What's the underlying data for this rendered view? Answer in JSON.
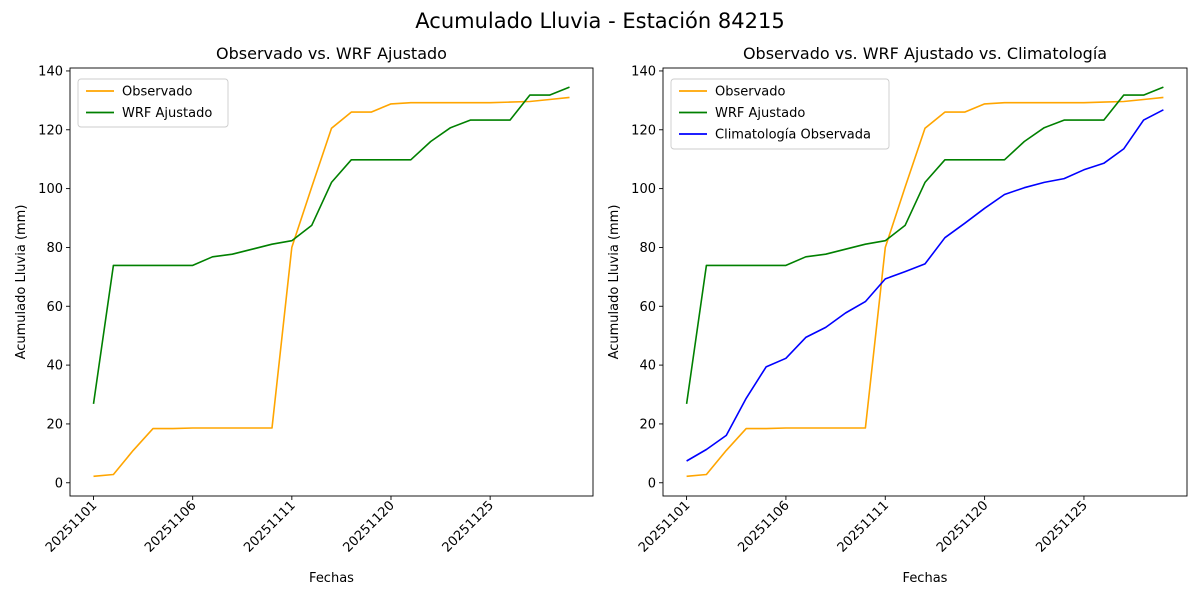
{
  "figure": {
    "suptitle": "Acumulado Lluvia - Estación 84215"
  },
  "colors": {
    "observado": "#ffa500",
    "wrf": "#008000",
    "clima": "#0000ff"
  },
  "chart_data": [
    {
      "type": "line",
      "title": "Observado vs. WRF Ajustado",
      "xlabel": "Fechas",
      "ylabel": "Acumulado Lluvia (mm)",
      "xticks": [
        "20251101",
        "20251106",
        "20251111",
        "20251120",
        "20251125"
      ],
      "yticks": [
        "0",
        "20",
        "40",
        "60",
        "80",
        "100",
        "120",
        "140"
      ],
      "ylim": [
        -4.5,
        141
      ],
      "legend": "top-left",
      "series": [
        {
          "name": "Observado",
          "color": "#ffa500",
          "values": [
            2.2,
            2.8,
            11,
            18.4,
            18.4,
            18.6,
            18.6,
            18.6,
            18.6,
            18.6,
            80,
            100.5,
            120.5,
            126,
            126,
            128.8,
            129.2,
            129.2,
            129.2,
            129.2,
            129.2,
            129.4,
            129.6,
            130.3,
            131
          ]
        },
        {
          "name": "WRF Ajustado",
          "color": "#008000",
          "values": [
            26.8,
            73.9,
            73.9,
            73.9,
            73.9,
            73.9,
            76.8,
            77.7,
            79.4,
            81.1,
            82.3,
            87.5,
            102.1,
            109.8,
            109.8,
            109.8,
            109.8,
            116,
            120.7,
            123.3,
            123.3,
            123.3,
            131.8,
            131.8,
            134.5
          ]
        }
      ]
    },
    {
      "type": "line",
      "title": "Observado vs. WRF Ajustado vs. Climatología",
      "xlabel": "Fechas",
      "ylabel": "Acumulado Lluvia (mm)",
      "xticks": [
        "20251101",
        "20251106",
        "20251111",
        "20251120",
        "20251125"
      ],
      "yticks": [
        "0",
        "20",
        "40",
        "60",
        "80",
        "100",
        "120",
        "140"
      ],
      "ylim": [
        -4.5,
        141
      ],
      "legend": "top-left",
      "series": [
        {
          "name": "Observado",
          "color": "#ffa500",
          "values": [
            2.2,
            2.8,
            11,
            18.4,
            18.4,
            18.6,
            18.6,
            18.6,
            18.6,
            18.6,
            80,
            100.5,
            120.5,
            126,
            126,
            128.8,
            129.2,
            129.2,
            129.2,
            129.2,
            129.2,
            129.4,
            129.6,
            130.3,
            131
          ]
        },
        {
          "name": "WRF Ajustado",
          "color": "#008000",
          "values": [
            26.8,
            73.9,
            73.9,
            73.9,
            73.9,
            73.9,
            76.8,
            77.7,
            79.4,
            81.1,
            82.3,
            87.5,
            102.1,
            109.8,
            109.8,
            109.8,
            109.8,
            116,
            120.7,
            123.3,
            123.3,
            123.3,
            131.8,
            131.8,
            134.5
          ]
        },
        {
          "name": "Climatología Observada",
          "color": "#0000ff",
          "values": [
            7.4,
            11.3,
            16.1,
            28.7,
            39.4,
            42.3,
            49.4,
            52.8,
            57.7,
            61.6,
            69.3,
            71.8,
            74.4,
            83.3,
            88.2,
            93.3,
            98,
            100.3,
            102.1,
            103.4,
            106.4,
            108.6,
            113.5,
            123.3,
            126.8
          ]
        }
      ]
    }
  ]
}
